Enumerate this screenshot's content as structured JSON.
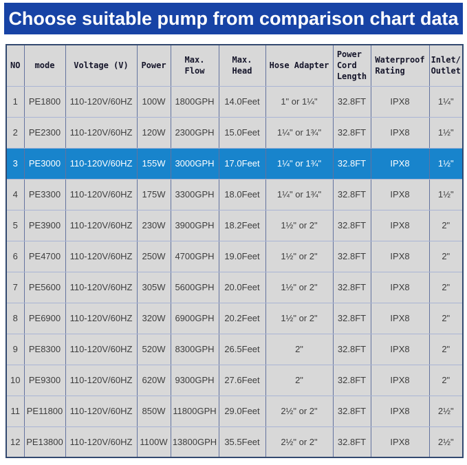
{
  "header": {
    "title": "Choose suitable pump from comparison chart data"
  },
  "colors": {
    "title_bar_bg": "#1743a5",
    "title_text": "#ffffff",
    "highlight_row_bg": "#1884cc",
    "highlight_row_text": "#ffffff",
    "cell_bg": "#d8d8d8",
    "outer_border": "#31486f",
    "grid_vertical": "#62729e",
    "grid_horizontal": "#a9b4d4",
    "data_text": "#3d3d3d"
  },
  "chart_data": {
    "type": "table",
    "title": "Choose suitable pump from comparison chart data",
    "highlighted_row_no": 3,
    "column_keys": [
      "no",
      "mode",
      "voltage",
      "power",
      "max_flow",
      "max_head",
      "hose_adapter",
      "power_cord_length",
      "waterproof_rating",
      "inlet_outlet"
    ],
    "columns": [
      "NO",
      "mode",
      "Voltage (V)",
      "Power",
      "Max.\nFlow",
      "Max.\nHead",
      "Hose Adapter",
      "Power\nCord\nLength",
      "Waterproof\nRating",
      "Inlet/\nOutlet"
    ],
    "rows": [
      [
        "1",
        "PE1800",
        "110-120V/60HZ",
        "100W",
        "1800GPH",
        "14.0Feet",
        "1\" or 1¼\"",
        "32.8FT",
        "IPX8",
        "1¼\""
      ],
      [
        "2",
        "PE2300",
        "110-120V/60HZ",
        "120W",
        "2300GPH",
        "15.0Feet",
        "1¼\" or 1¾\"",
        "32.8FT",
        "IPX8",
        "1½\""
      ],
      [
        "3",
        "PE3000",
        "110-120V/60HZ",
        "155W",
        "3000GPH",
        "17.0Feet",
        "1¼\" or 1¾\"",
        "32.8FT",
        "IPX8",
        "1½\""
      ],
      [
        "4",
        "PE3300",
        "110-120V/60HZ",
        "175W",
        "3300GPH",
        "18.0Feet",
        "1¼\" or 1¾\"",
        "32.8FT",
        "IPX8",
        "1½\""
      ],
      [
        "5",
        "PE3900",
        "110-120V/60HZ",
        "230W",
        "3900GPH",
        "18.2Feet",
        "1½\" or 2\"",
        "32.8FT",
        "IPX8",
        "2\""
      ],
      [
        "6",
        "PE4700",
        "110-120V/60HZ",
        "250W",
        "4700GPH",
        "19.0Feet",
        "1½\" or 2\"",
        "32.8FT",
        "IPX8",
        "2\""
      ],
      [
        "7",
        "PE5600",
        "110-120V/60HZ",
        "305W",
        "5600GPH",
        "20.0Feet",
        "1½\" or 2\"",
        "32.8FT",
        "IPX8",
        "2\""
      ],
      [
        "8",
        "PE6900",
        "110-120V/60HZ",
        "320W",
        "6900GPH",
        "20.2Feet",
        "1½\" or 2\"",
        "32.8FT",
        "IPX8",
        "2\""
      ],
      [
        "9",
        "PE8300",
        "110-120V/60HZ",
        "520W",
        "8300GPH",
        "26.5Feet",
        "2\"",
        "32.8FT",
        "IPX8",
        "2\""
      ],
      [
        "10",
        "PE9300",
        "110-120V/60HZ",
        "620W",
        "9300GPH",
        "27.6Feet",
        "2\"",
        "32.8FT",
        "IPX8",
        "2\""
      ],
      [
        "11",
        "PE11800",
        "110-120V/60HZ",
        "850W",
        "11800GPH",
        "29.0Feet",
        "2½\" or 2\"",
        "32.8FT",
        "IPX8",
        "2½\""
      ],
      [
        "12",
        "PE13800",
        "110-120V/60HZ",
        "1100W",
        "13800GPH",
        "35.5Feet",
        "2½\" or 2\"",
        "32.8FT",
        "IPX8",
        "2½\""
      ]
    ]
  }
}
